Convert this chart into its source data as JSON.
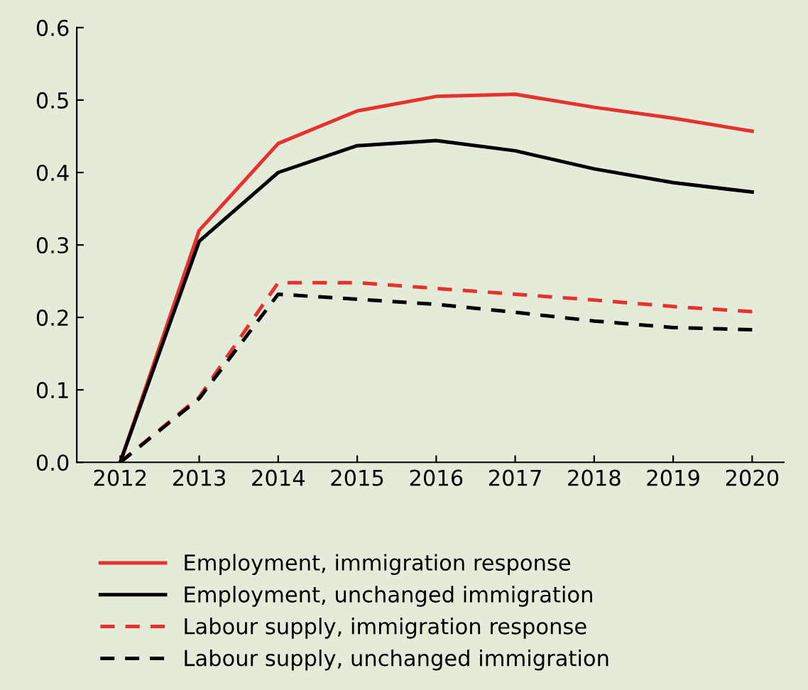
{
  "chart_data": {
    "type": "line",
    "categories": [
      "2012",
      "2013",
      "2014",
      "2015",
      "2016",
      "2017",
      "2018",
      "2019",
      "2020"
    ],
    "series": [
      {
        "name": "Employment, immigration response",
        "color": "#e8312f",
        "line_style": "solid",
        "values": [
          0,
          0.32,
          0.44,
          0.485,
          0.505,
          0.508,
          0.49,
          0.475,
          0.457
        ]
      },
      {
        "name": "Employment, unchanged immigration",
        "color": "#000000",
        "line_style": "solid",
        "values": [
          0,
          0.305,
          0.4,
          0.437,
          0.444,
          0.43,
          0.405,
          0.386,
          0.373
        ]
      },
      {
        "name": "Labour supply, immigration response",
        "color": "#e8312f",
        "line_style": "dashed",
        "values": [
          0,
          0.09,
          0.248,
          0.248,
          0.24,
          0.232,
          0.224,
          0.215,
          0.208
        ]
      },
      {
        "name": "Labour supply, unchanged immigration",
        "color": "#000000",
        "line_style": "dashed",
        "values": [
          0,
          0.088,
          0.232,
          0.225,
          0.218,
          0.207,
          0.195,
          0.186,
          0.183
        ]
      }
    ],
    "ylim": [
      0,
      0.6
    ],
    "yticks": [
      {
        "value": 0,
        "label": "0.0"
      },
      0.1,
      0.2,
      0.3,
      0.4,
      0.5,
      0.6
    ],
    "grid": false,
    "legend": "bottom",
    "marker": "none"
  }
}
